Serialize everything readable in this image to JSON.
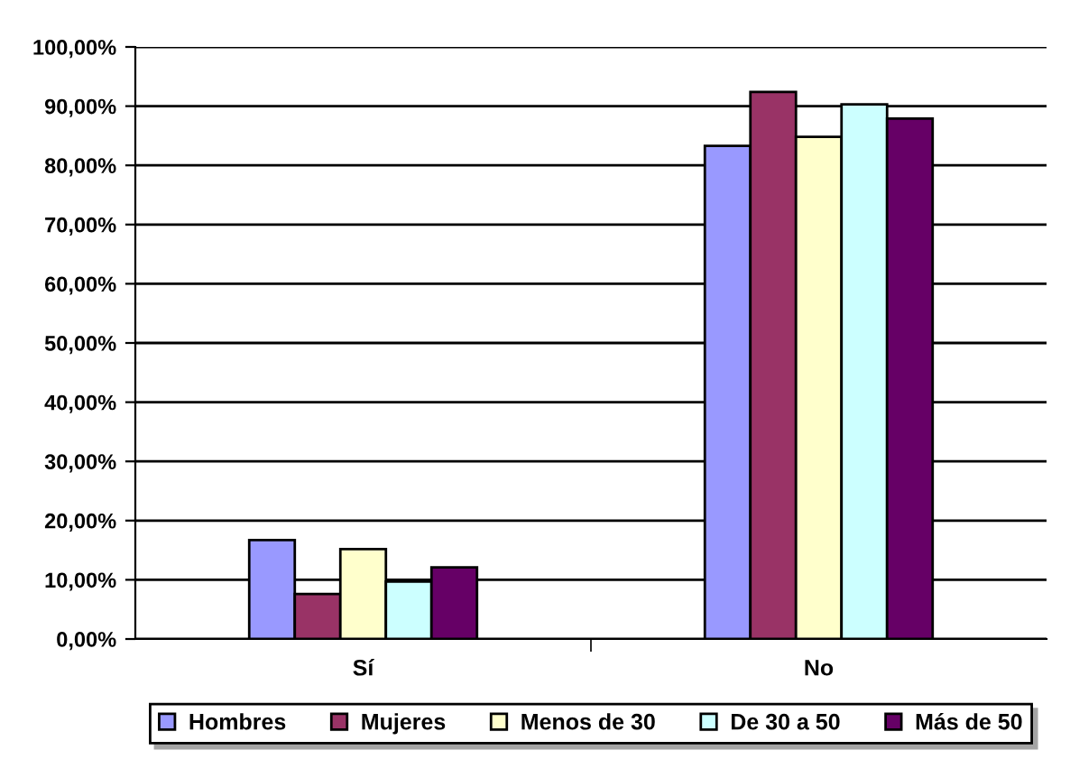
{
  "chart_data": {
    "type": "bar",
    "categories": [
      "Sí",
      "No"
    ],
    "series": [
      {
        "name": "Hombres",
        "color": "#9999ff",
        "values": [
          16.7,
          83.3
        ]
      },
      {
        "name": "Mujeres",
        "color": "#993366",
        "values": [
          7.6,
          92.4
        ]
      },
      {
        "name": "Menos de 30",
        "color": "#ffffcc",
        "values": [
          15.2,
          84.8
        ]
      },
      {
        "name": "De 30 a 50",
        "color": "#ccffff",
        "values": [
          9.7,
          90.3
        ]
      },
      {
        "name": "Más de 50",
        "color": "#660066",
        "values": [
          12.1,
          87.9
        ]
      }
    ],
    "ylim": [
      0,
      100
    ],
    "yticks": [
      {
        "value": 0,
        "label": "0,00%"
      },
      {
        "value": 10,
        "label": "10,00%"
      },
      {
        "value": 20,
        "label": "20,00%"
      },
      {
        "value": 30,
        "label": "30,00%"
      },
      {
        "value": 40,
        "label": "40,00%"
      },
      {
        "value": 50,
        "label": "50,00%"
      },
      {
        "value": 60,
        "label": "60,00%"
      },
      {
        "value": 70,
        "label": "70,00%"
      },
      {
        "value": 80,
        "label": "80,00%"
      },
      {
        "value": 90,
        "label": "90,00%"
      },
      {
        "value": 100,
        "label": "100,00%"
      }
    ],
    "grid": "y",
    "legend": "bottom"
  }
}
